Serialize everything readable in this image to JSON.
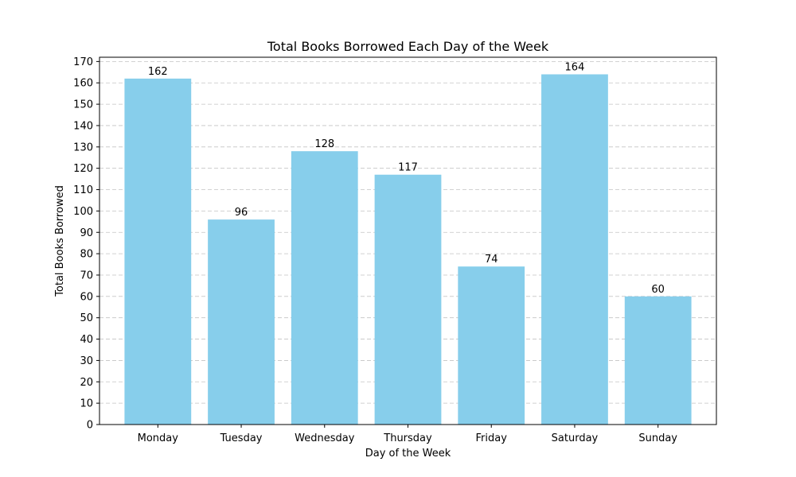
{
  "chart_data": {
    "type": "bar",
    "title": "Total Books Borrowed Each Day of the Week",
    "xlabel": "Day of the Week",
    "ylabel": "Total Books Borrowed",
    "categories": [
      "Monday",
      "Tuesday",
      "Wednesday",
      "Thursday",
      "Friday",
      "Saturday",
      "Sunday"
    ],
    "values": [
      162,
      96,
      128,
      117,
      74,
      164,
      60
    ],
    "data_labels": [
      "162",
      "96",
      "128",
      "117",
      "74",
      "164",
      "60"
    ],
    "ylim": [
      0,
      172
    ],
    "yticks": [
      0,
      10,
      20,
      30,
      40,
      50,
      60,
      70,
      80,
      90,
      100,
      110,
      120,
      130,
      140,
      150,
      160,
      170
    ],
    "grid": "y-axis dashed",
    "bar_color": "#87ceeb"
  }
}
